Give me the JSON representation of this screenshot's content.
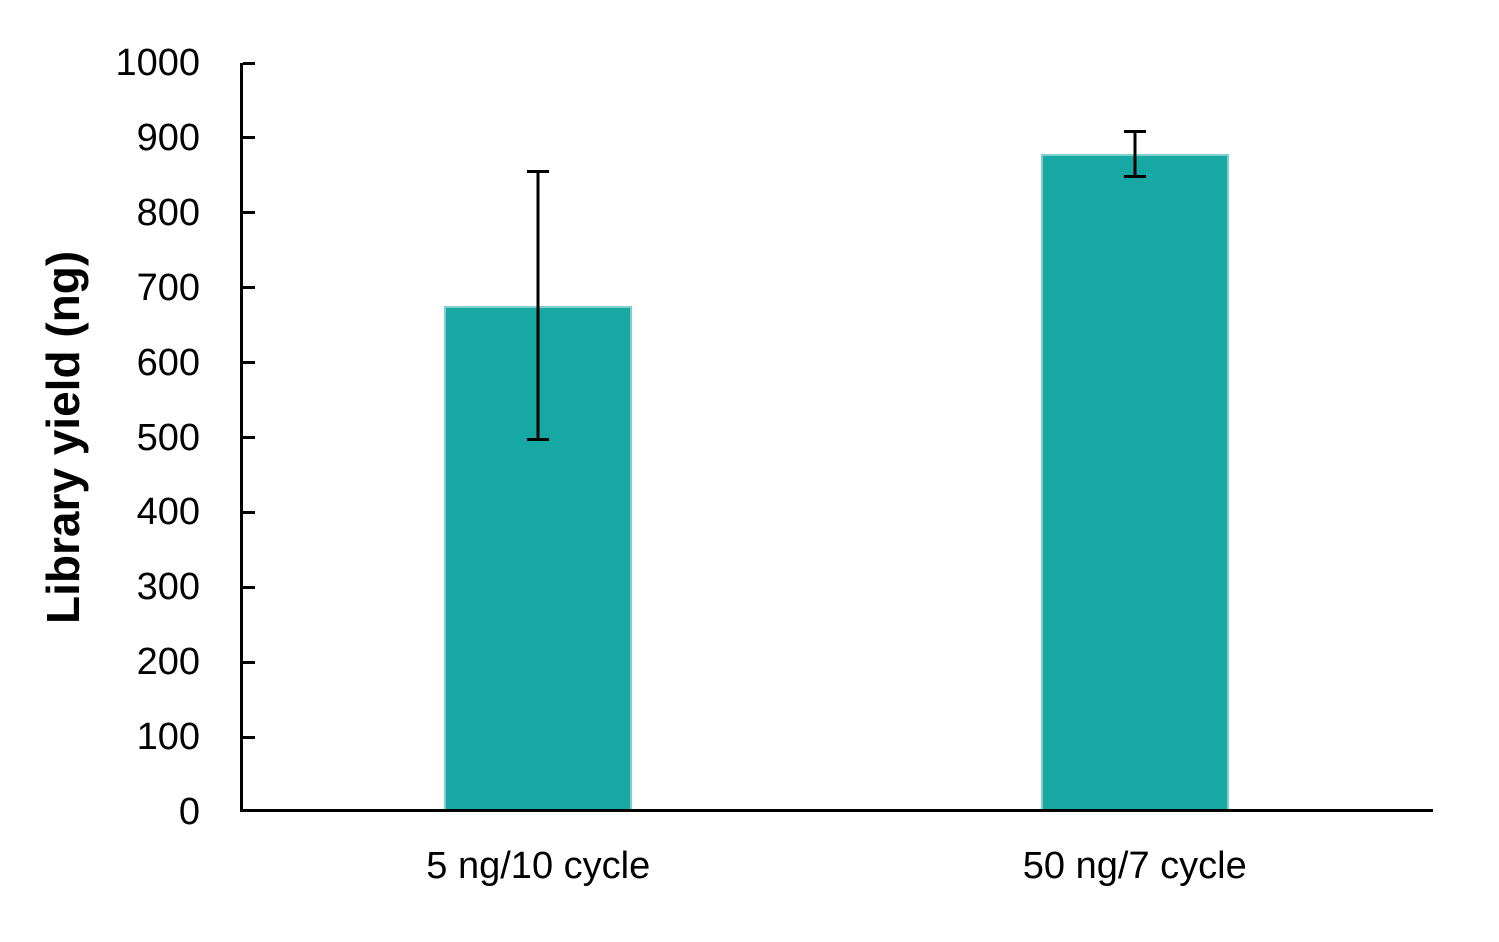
{
  "chart_data": {
    "type": "bar",
    "title": "",
    "ylabel": "Library yield (ng)",
    "xlabel": "",
    "categories": [
      "5 ng/10 cycle",
      "50 ng/7 cycle"
    ],
    "values": [
      676,
      878
    ],
    "error_bars": [
      181,
      32
    ],
    "error_ranges": [
      [
        495,
        857
      ],
      [
        846,
        910
      ]
    ],
    "ylim": [
      0,
      1000
    ],
    "ytick_step": 100,
    "yticks": [
      0,
      100,
      200,
      300,
      400,
      500,
      600,
      700,
      800,
      900,
      1000
    ],
    "bar_color": "#18a8a3",
    "axis_color": "#000000",
    "error_bar_color": "#000000",
    "text_color": "#000000",
    "grid": false,
    "legend": "none"
  }
}
